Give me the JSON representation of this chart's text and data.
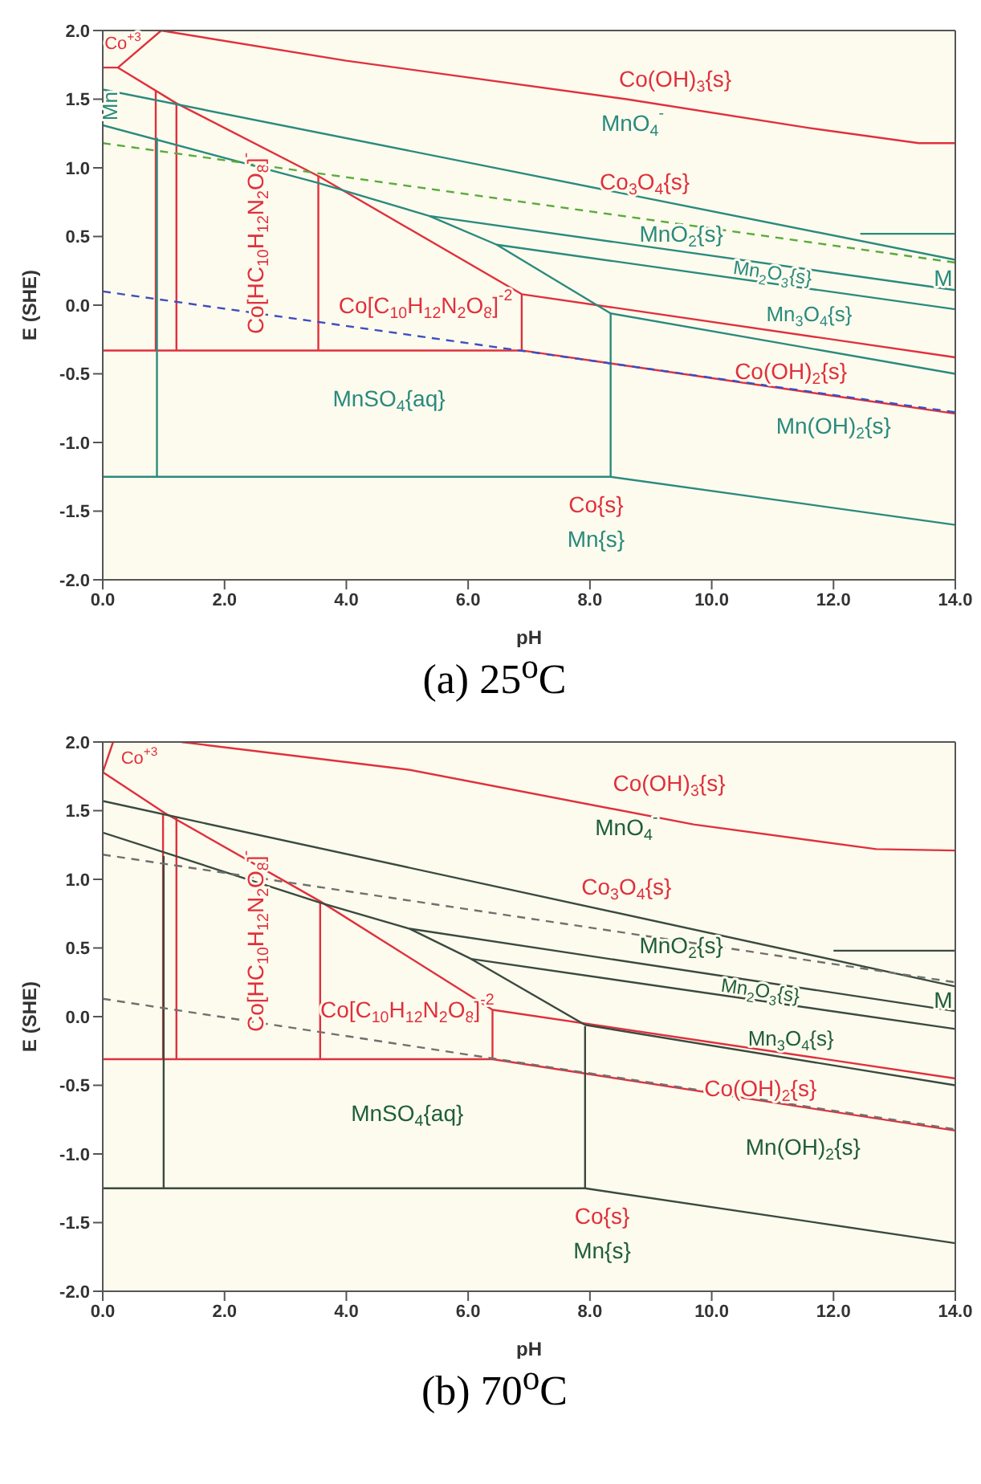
{
  "chart_data": [
    {
      "type": "line",
      "title": "(a) 25$^{o}$C",
      "xlabel": "pH",
      "ylabel": "E (SHE)",
      "xlim": [
        0,
        14
      ],
      "ylim": [
        -2,
        2
      ],
      "xticks": [
        {
          "value": 0,
          "label": "0.0"
        },
        {
          "value": 2,
          "label": "2.0"
        },
        {
          "value": 4,
          "label": "4.0"
        },
        {
          "value": 6,
          "label": "6.0"
        },
        {
          "value": 8,
          "label": "8.0"
        },
        {
          "value": 10,
          "label": "10.0"
        },
        {
          "value": 12,
          "label": "12.0"
        },
        {
          "value": 14,
          "label": "14.0"
        }
      ],
      "yticks": [
        {
          "value": -2,
          "label": "-2.0"
        },
        {
          "value": -1.5,
          "label": "-1.5"
        },
        {
          "value": -1,
          "label": "-1.0"
        },
        {
          "value": -0.5,
          "label": "-0.5"
        },
        {
          "value": 0,
          "label": "0.0"
        },
        {
          "value": 0.5,
          "label": "0.5"
        },
        {
          "value": 1,
          "label": "1.0"
        },
        {
          "value": 1.5,
          "label": "1.5"
        },
        {
          "value": 2,
          "label": "2.0"
        }
      ],
      "series": [
        {
          "color": "#e0303c",
          "x": [
            0.96,
            4,
            8.6,
            11.6,
            13.4,
            14
          ],
          "values": [
            2.0,
            1.78,
            1.5,
            1.29,
            1.18,
            1.18
          ]
        },
        {
          "color": "#e0303c",
          "x": [
            0,
            0.25,
            0.96
          ],
          "values": [
            1.73,
            1.73,
            2.0
          ]
        },
        {
          "color": "#e0303c",
          "x": [
            0.25,
            1.21,
            3.54,
            6.88,
            14
          ],
          "values": [
            1.73,
            1.47,
            0.94,
            0.08,
            -0.38
          ]
        },
        {
          "color": "#e0303c",
          "x": [
            0,
            6.88,
            14
          ],
          "values": [
            -0.33,
            -0.33,
            -0.79
          ]
        },
        {
          "color": "#e0303c",
          "x": [
            0.87,
            0.87
          ],
          "values": [
            1.56,
            -0.33
          ]
        },
        {
          "color": "#e0303c",
          "x": [
            1.21,
            1.21
          ],
          "values": [
            1.47,
            -0.33
          ]
        },
        {
          "color": "#e0303c",
          "x": [
            3.54,
            3.54
          ],
          "values": [
            0.94,
            -0.33
          ]
        },
        {
          "color": "#e0303c",
          "x": [
            6.88,
            6.88
          ],
          "values": [
            0.08,
            -0.33
          ]
        },
        {
          "color": "#2a8a7e",
          "x": [
            0,
            14
          ],
          "values": [
            1.57,
            0.33
          ]
        },
        {
          "color": "#2a8a7e",
          "x": [
            12.44,
            14
          ],
          "values": [
            0.52,
            0.52
          ]
        },
        {
          "color": "#2a8a7e",
          "x": [
            0,
            3.54,
            5.36,
            14
          ],
          "values": [
            1.31,
            0.89,
            0.65,
            0.11
          ]
        },
        {
          "color": "#2a8a7e",
          "x": [
            5.36,
            6.47,
            8.34,
            14
          ],
          "values": [
            0.65,
            0.44,
            -0.06,
            -0.5
          ]
        },
        {
          "color": "#2a8a7e",
          "x": [
            6.47,
            14
          ],
          "values": [
            0.44,
            -0.03
          ]
        },
        {
          "color": "#2a8a7e",
          "x": [
            8.34,
            8.34
          ],
          "values": [
            -0.06,
            -1.25
          ]
        },
        {
          "color": "#2a8a7e",
          "x": [
            0.89,
            0.89
          ],
          "values": [
            1.22,
            -1.25
          ]
        },
        {
          "color": "#2a8a7e",
          "x": [
            0,
            8.34,
            14
          ],
          "values": [
            -1.25,
            -1.25,
            -1.6
          ]
        },
        {
          "color": "#5aaa3c",
          "line_style": "dashed",
          "x": [
            0,
            14
          ],
          "values": [
            1.18,
            0.31
          ]
        },
        {
          "color": "#3d4fbf",
          "line_style": "dashed",
          "x": [
            0,
            14
          ],
          "values": [
            0.1,
            -0.78
          ]
        }
      ],
      "annotations": [
        "Co$^{+3}$",
        "Co(OH)$_{3}${s}",
        "MnO$_{4}$$^{-}$",
        "Co$_{3}$O$_{4}${s}",
        "MnO$_{2}${s}",
        "Mn$_{2}$O$_{3}${s}",
        "Mn$_{3}$O$_{4}${s}",
        "Co(OH)$_{2}${s}",
        "Mn(OH)$_{2}${s}",
        "MnSO$_{4}${aq}",
        "Co{s}",
        "Mn{s}",
        "Co[C$_{10}$H$_{12}$N$_{2}$O$_{8}$]$^{-2}$",
        "M",
        "Co[HC$_{10}$H$_{12}$N$_{2}$O$_{8}$]$^{-}$",
        "Mn"
      ]
    },
    {
      "type": "line",
      "title": "(b) 70$^{o}$C",
      "xlabel": "pH",
      "ylabel": "E (SHE)",
      "xlim": [
        0,
        14
      ],
      "ylim": [
        -2,
        2
      ],
      "xticks": [
        {
          "value": 0,
          "label": "0.0"
        },
        {
          "value": 2,
          "label": "2.0"
        },
        {
          "value": 4,
          "label": "4.0"
        },
        {
          "value": 6,
          "label": "6.0"
        },
        {
          "value": 8,
          "label": "8.0"
        },
        {
          "value": 10,
          "label": "10.0"
        },
        {
          "value": 12,
          "label": "12.0"
        },
        {
          "value": 14,
          "label": "14.0"
        }
      ],
      "yticks": [
        {
          "value": -2,
          "label": "-2.0"
        },
        {
          "value": -1.5,
          "label": "-1.5"
        },
        {
          "value": -1,
          "label": "-1.0"
        },
        {
          "value": -0.5,
          "label": "-0.5"
        },
        {
          "value": 0,
          "label": "0.0"
        },
        {
          "value": 0.5,
          "label": "0.5"
        },
        {
          "value": 1,
          "label": "1.0"
        },
        {
          "value": 1.5,
          "label": "1.5"
        },
        {
          "value": 2,
          "label": "2.0"
        }
      ],
      "series": [
        {
          "color": "#e0303c",
          "x": [
            1.29,
            5,
            9.7,
            12.7,
            14
          ],
          "values": [
            2.0,
            1.8,
            1.4,
            1.22,
            1.21
          ]
        },
        {
          "color": "#e0303c",
          "x": [
            0,
            0.17
          ],
          "values": [
            1.78,
            2.0
          ]
        },
        {
          "color": "#e0303c",
          "x": [
            0,
            1.03,
            3.57,
            6.4,
            14
          ],
          "values": [
            1.78,
            1.48,
            0.84,
            0.05,
            -0.45
          ]
        },
        {
          "color": "#e0303c",
          "x": [
            0,
            6.4,
            14
          ],
          "values": [
            -0.31,
            -0.31,
            -0.83
          ]
        },
        {
          "color": "#e0303c",
          "x": [
            0.99,
            0.99
          ],
          "values": [
            1.48,
            -0.31
          ]
        },
        {
          "color": "#e0303c",
          "x": [
            1.21,
            1.21
          ],
          "values": [
            1.45,
            -0.31
          ]
        },
        {
          "color": "#e0303c",
          "x": [
            3.57,
            3.57
          ],
          "values": [
            0.84,
            -0.31
          ]
        },
        {
          "color": "#e0303c",
          "x": [
            6.4,
            6.4
          ],
          "values": [
            0.05,
            -0.31
          ]
        },
        {
          "color": "#3a4a40",
          "x": [
            0,
            14
          ],
          "values": [
            1.57,
            0.22
          ]
        },
        {
          "color": "#3a4a40",
          "x": [
            12.0,
            14
          ],
          "values": [
            0.48,
            0.48
          ]
        },
        {
          "color": "#3a4a40",
          "x": [
            0,
            3.57,
            5.04,
            14
          ],
          "values": [
            1.34,
            0.83,
            0.64,
            0.04
          ]
        },
        {
          "color": "#3a4a40",
          "x": [
            5.04,
            6.05,
            7.92,
            14
          ],
          "values": [
            0.64,
            0.42,
            -0.06,
            -0.5
          ]
        },
        {
          "color": "#3a4a40",
          "x": [
            6.05,
            14
          ],
          "values": [
            0.42,
            -0.09
          ]
        },
        {
          "color": "#3a4a40",
          "x": [
            7.92,
            7.92
          ],
          "values": [
            -0.07,
            -1.25
          ]
        },
        {
          "color": "#3a4a40",
          "x": [
            1.0,
            1.0
          ],
          "values": [
            1.17,
            -1.25
          ]
        },
        {
          "color": "#3a4a40",
          "x": [
            0,
            7.92,
            14
          ],
          "values": [
            -1.25,
            -1.25,
            -1.65
          ]
        },
        {
          "color": "#707070",
          "line_style": "dashed",
          "x": [
            0,
            14
          ],
          "values": [
            1.18,
            0.25
          ]
        },
        {
          "color": "#707070",
          "line_style": "dashed",
          "x": [
            0,
            14
          ],
          "values": [
            0.13,
            -0.82
          ]
        }
      ],
      "annotations": [
        "Co$^{+3}$",
        "Co(OH)$_{3}${s}",
        "MnO$_{4}$$^{-}$",
        "Co$_{3}$O$_{4}${s}",
        "MnO$_{2}${s}",
        "Mn$_{2}$O$_{3}${s}",
        "Mn$_{3}$O$_{4}${s}",
        "Co(OH)$_{2}${s}",
        "Mn(OH)$_{2}${s}",
        "MnSO$_{4}${aq}",
        "Co{s}",
        "Mn{s}",
        "Co[C$_{10}$H$_{12}$N$_{2}$O$_{8}$]$^{-2}$",
        "M",
        "Co[HC$_{10}$H$_{12}$N$_{2}$O$_{8}$]$^{-}$"
      ]
    }
  ]
}
